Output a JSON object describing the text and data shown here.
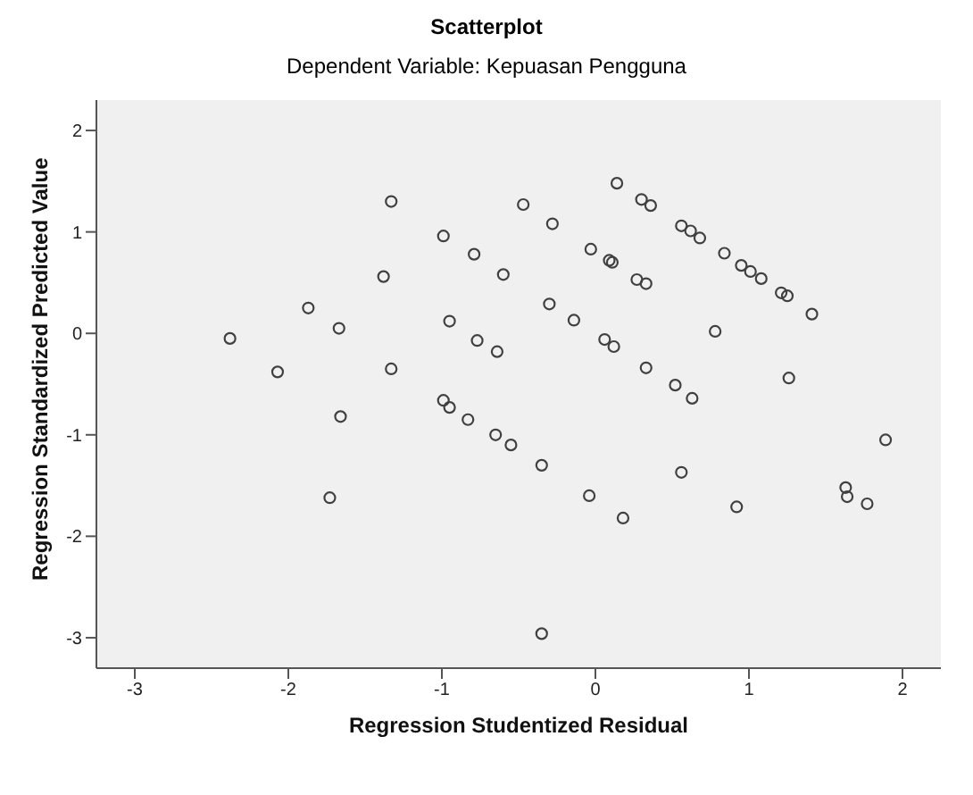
{
  "chart_data": {
    "type": "scatter",
    "title": "Scatterplot",
    "subtitle": "Dependent Variable: Kepuasan Pengguna",
    "xlabel": "Regression Studentized Residual",
    "ylabel": "Regression Standardized Predicted Value",
    "series": [
      {
        "color": "#404040",
        "x": [
          -1.33,
          -0.99,
          -0.79,
          -0.6,
          -1.38,
          -1.87,
          -1.67,
          -2.38,
          -0.95,
          -0.77,
          -0.64,
          -2.07,
          -1.33,
          0.14,
          0.3,
          0.36,
          -0.47,
          -0.28,
          0.56,
          0.62,
          0.68,
          -0.03,
          0.09,
          0.11,
          0.84,
          0.95,
          1.01,
          1.08,
          1.21,
          1.25,
          1.41,
          0.27,
          0.33,
          -0.3,
          -0.14,
          0.06,
          0.12,
          0.78,
          0.33,
          0.52,
          1.26,
          -1.66,
          -1.73,
          -0.99,
          -0.95,
          -0.83,
          -0.65,
          -0.55,
          -0.35,
          -0.04,
          0.18,
          0.63,
          0.56,
          0.92,
          1.63,
          1.64,
          1.77,
          1.89,
          -0.35
        ],
        "values": [
          1.3,
          0.96,
          0.78,
          0.58,
          0.56,
          0.25,
          0.05,
          -0.05,
          0.12,
          -0.07,
          -0.18,
          -0.38,
          -0.35,
          1.48,
          1.32,
          1.26,
          1.27,
          1.08,
          1.06,
          1.01,
          0.94,
          0.83,
          0.72,
          0.7,
          0.79,
          0.67,
          0.61,
          0.54,
          0.4,
          0.37,
          0.19,
          0.53,
          0.49,
          0.29,
          0.13,
          -0.06,
          -0.13,
          0.02,
          -0.34,
          -0.51,
          -0.44,
          -0.82,
          -1.62,
          -0.66,
          -0.73,
          -0.85,
          -1.0,
          -1.1,
          -1.3,
          -1.6,
          -1.82,
          -0.64,
          -1.37,
          -1.71,
          -1.52,
          -1.61,
          -1.68,
          -1.05,
          -2.96
        ]
      }
    ],
    "xlim": [
      -3.25,
      2.25
    ],
    "xticks": [
      -3,
      -2,
      -1,
      0,
      1,
      2
    ],
    "ylim": [
      -3.3,
      2.3
    ],
    "yticks": [
      -3,
      -2,
      -1,
      0,
      1,
      2
    ],
    "grid": false,
    "marker": "circle"
  }
}
